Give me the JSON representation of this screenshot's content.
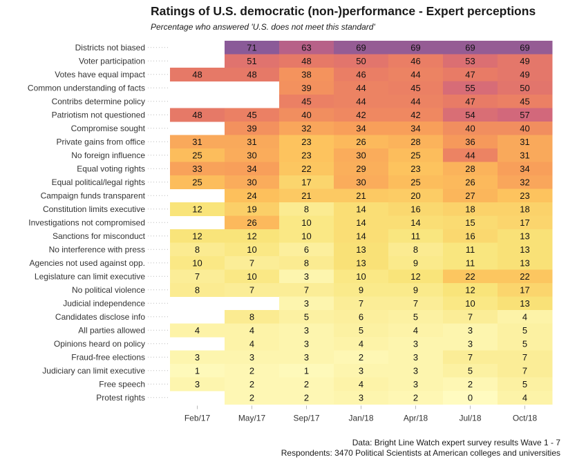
{
  "chart_data": {
    "type": "heatmap",
    "title": "Ratings of U.S. democratic (non-)performance - Expert perceptions",
    "subtitle": "Percentage who answered 'U.S. does not meet this standard'",
    "x_categories": [
      "Feb/17",
      "May/17",
      "Sep/17",
      "Jan/18",
      "Apr/18",
      "Jul/18",
      "Oct/18"
    ],
    "rows": [
      {
        "label": "Districts not biased",
        "values": [
          null,
          71,
          63,
          69,
          69,
          69,
          69
        ]
      },
      {
        "label": "Voter participation",
        "values": [
          null,
          51,
          48,
          50,
          46,
          53,
          49
        ]
      },
      {
        "label": "Votes have equal impact",
        "values": [
          48,
          48,
          38,
          46,
          44,
          47,
          49
        ]
      },
      {
        "label": "Common understanding of facts",
        "values": [
          null,
          null,
          39,
          44,
          45,
          55,
          50
        ]
      },
      {
        "label": "Contribs determine policy",
        "values": [
          null,
          null,
          45,
          44,
          44,
          47,
          45
        ]
      },
      {
        "label": "Patriotism not questioned",
        "values": [
          48,
          45,
          40,
          42,
          42,
          54,
          57
        ]
      },
      {
        "label": "Compromise sought",
        "values": [
          null,
          39,
          32,
          34,
          34,
          40,
          40
        ]
      },
      {
        "label": "Private gains from office",
        "values": [
          31,
          31,
          23,
          26,
          28,
          36,
          31
        ]
      },
      {
        "label": "No foreign influence",
        "values": [
          25,
          30,
          23,
          30,
          25,
          44,
          31
        ]
      },
      {
        "label": "Equal voting rights",
        "values": [
          33,
          34,
          22,
          29,
          23,
          28,
          34
        ]
      },
      {
        "label": "Equal political/legal rights",
        "values": [
          25,
          30,
          17,
          30,
          25,
          26,
          32
        ]
      },
      {
        "label": "Campaign funds transparent",
        "values": [
          null,
          24,
          21,
          21,
          20,
          27,
          23
        ]
      },
      {
        "label": "Constitution limits executive",
        "values": [
          12,
          19,
          8,
          14,
          16,
          18,
          18
        ]
      },
      {
        "label": "Investigations not compromised",
        "values": [
          null,
          26,
          10,
          14,
          14,
          15,
          17
        ]
      },
      {
        "label": "Sanctions for misconduct",
        "values": [
          12,
          12,
          10,
          14,
          11,
          16,
          13
        ]
      },
      {
        "label": "No interference with press",
        "values": [
          8,
          10,
          6,
          13,
          8,
          11,
          13
        ]
      },
      {
        "label": "Agencies not used against opp.",
        "values": [
          10,
          7,
          8,
          13,
          9,
          11,
          13
        ]
      },
      {
        "label": "Legislature can limit executive",
        "values": [
          7,
          10,
          3,
          10,
          12,
          22,
          22
        ]
      },
      {
        "label": "No political violence",
        "values": [
          8,
          7,
          7,
          9,
          9,
          12,
          17
        ]
      },
      {
        "label": "Judicial independence",
        "values": [
          null,
          null,
          3,
          7,
          7,
          10,
          13
        ]
      },
      {
        "label": "Candidates disclose info",
        "values": [
          null,
          8,
          5,
          6,
          5,
          7,
          4
        ]
      },
      {
        "label": "All parties allowed",
        "values": [
          4,
          4,
          3,
          5,
          4,
          3,
          5
        ]
      },
      {
        "label": "Opinions heard on policy",
        "values": [
          null,
          4,
          3,
          4,
          3,
          3,
          5
        ]
      },
      {
        "label": "Fraud-free elections",
        "values": [
          3,
          3,
          3,
          2,
          3,
          7,
          7
        ]
      },
      {
        "label": "Judiciary can limit executive",
        "values": [
          1,
          2,
          1,
          3,
          3,
          5,
          7
        ]
      },
      {
        "label": "Free speech",
        "values": [
          3,
          2,
          2,
          4,
          3,
          2,
          5
        ]
      },
      {
        "label": "Protest rights",
        "values": [
          null,
          2,
          2,
          3,
          2,
          0,
          4
        ]
      }
    ],
    "value_range": [
      0,
      71
    ],
    "palette": [
      "#fffbc0",
      "#f9e47a",
      "#fdc15c",
      "#f79a5a",
      "#e87a66",
      "#cd6480",
      "#8a5a98"
    ],
    "grid": false,
    "legend": "none"
  },
  "caption": {
    "line1": "Data: Bright Line Watch expert survey results Wave 1 - 7",
    "line2": "Respondents: 3470 Political Scientists at American colleges and universities"
  }
}
